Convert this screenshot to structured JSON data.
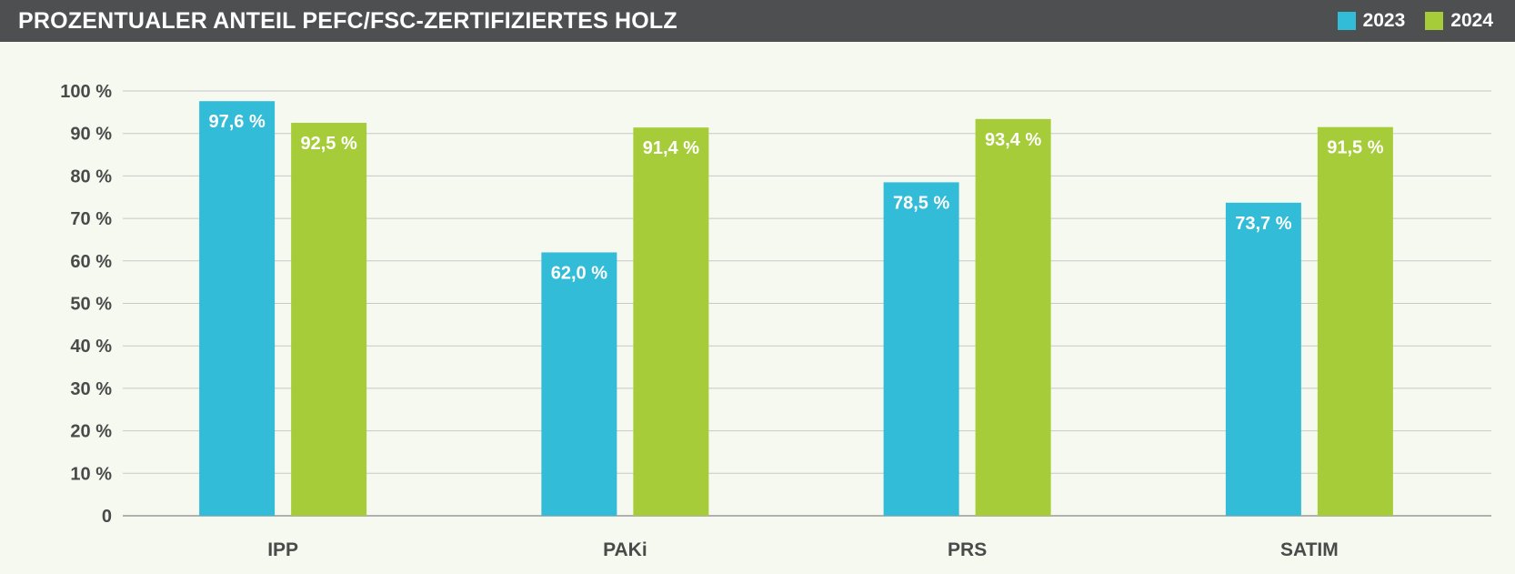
{
  "chart_data": {
    "type": "bar",
    "title": "PROZENTUALER ANTEIL PEFC/FSC-ZERTIFIZIERTES HOLZ",
    "categories": [
      "IPP",
      "PAKi",
      "PRS",
      "SATIM"
    ],
    "series": [
      {
        "name": "2023",
        "color": "#33bcd8",
        "values": [
          97.6,
          62.0,
          78.5,
          73.7
        ],
        "labels": [
          "97,6 %",
          "62,0 %",
          "78,5 %",
          "73,7 %"
        ]
      },
      {
        "name": "2024",
        "color": "#a6cd39",
        "values": [
          92.5,
          91.4,
          93.4,
          91.5
        ],
        "labels": [
          "92,5 %",
          "91,4 %",
          "93,4 %",
          "91,5 %"
        ]
      }
    ],
    "ylim": [
      0,
      100
    ],
    "yticks": [
      0,
      10,
      20,
      30,
      40,
      50,
      60,
      70,
      80,
      90,
      100
    ],
    "ytick_labels": [
      "0",
      "10 %",
      "20 %",
      "30 %",
      "40 %",
      "50 %",
      "60 %",
      "70 %",
      "80 %",
      "90 %",
      "100 %"
    ],
    "grid": true,
    "legend": "top-right",
    "xlabel": "",
    "ylabel": ""
  },
  "colors": {
    "header_bg": "#4d4f51",
    "page_bg": "#f6f9f0",
    "grid": "#c8c8c8",
    "text": "#4a4a4a"
  }
}
